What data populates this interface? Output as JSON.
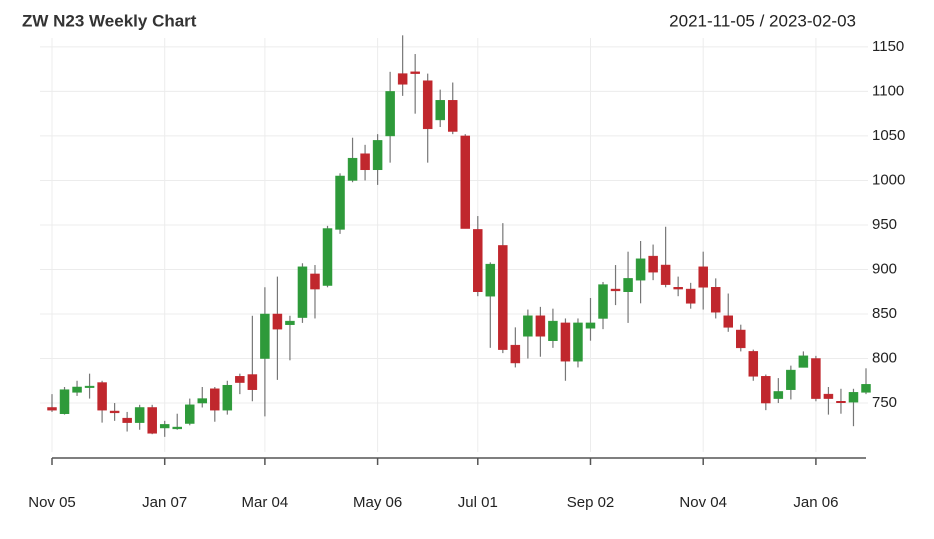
{
  "chart_data": {
    "type": "candlestick",
    "title": "ZW N23 Weekly Chart",
    "subtitle": "2021-11-05 / 2023-02-03",
    "categories": [
      "Nov 05",
      null,
      null,
      null,
      null,
      null,
      null,
      null,
      null,
      "Jan 07",
      null,
      null,
      null,
      null,
      null,
      null,
      null,
      "Mar 04",
      null,
      null,
      null,
      null,
      null,
      null,
      null,
      null,
      "May 06",
      null,
      null,
      null,
      null,
      null,
      null,
      null,
      "Jul 01",
      null,
      null,
      null,
      null,
      null,
      null,
      null,
      null,
      "Sep 02",
      null,
      null,
      null,
      null,
      null,
      null,
      null,
      null,
      "Nov 04",
      null,
      null,
      null,
      null,
      null,
      null,
      null,
      null,
      "Jan 06",
      null,
      null,
      null,
      null
    ],
    "series": [
      {
        "open": [
          745,
          738,
          762,
          768,
          773,
          741,
          733,
          728,
          745,
          722,
          721,
          727,
          750,
          766,
          742,
          780,
          782,
          800,
          850,
          838,
          846,
          895,
          882,
          945,
          1000,
          1030,
          1012,
          1050,
          1120,
          1122,
          1112,
          1068,
          1090,
          1050,
          945,
          870,
          927,
          815,
          825,
          848,
          820,
          840,
          797,
          834,
          845,
          878,
          875,
          888,
          915,
          905,
          880,
          878,
          903,
          880,
          848,
          832,
          808,
          780,
          755,
          765,
          790,
          800,
          760,
          752,
          751,
          762
        ],
        "high": [
          760,
          768,
          775,
          783,
          775,
          750,
          740,
          748,
          748,
          730,
          738,
          755,
          768,
          768,
          775,
          783,
          848,
          880,
          892,
          848,
          907,
          905,
          949,
          1008,
          1048,
          1040,
          1052,
          1122,
          1163,
          1142,
          1120,
          1102,
          1110,
          1052,
          960,
          908,
          952,
          835,
          855,
          858,
          856,
          845,
          845,
          868,
          886,
          905,
          920,
          932,
          928,
          948,
          892,
          885,
          920,
          890,
          873,
          838,
          810,
          782,
          778,
          792,
          808,
          803,
          768,
          766,
          766,
          789
        ],
        "low": [
          740,
          737,
          758,
          755,
          728,
          730,
          718,
          720,
          715,
          712,
          720,
          725,
          745,
          729,
          737,
          760,
          752,
          735,
          776,
          798,
          840,
          845,
          880,
          940,
          998,
          1000,
          995,
          1020,
          1095,
          1075,
          1020,
          1060,
          1052,
          946,
          870,
          812,
          806,
          790,
          800,
          802,
          812,
          775,
          790,
          820,
          833,
          860,
          840,
          862,
          888,
          880,
          870,
          856,
          855,
          845,
          830,
          808,
          775,
          742,
          750,
          754,
          790,
          752,
          737,
          738,
          724,
          760
        ],
        "close": [
          742,
          765,
          768,
          769,
          742,
          739,
          728,
          745,
          716,
          726,
          723,
          748,
          755,
          742,
          770,
          773,
          765,
          850,
          833,
          842,
          903,
          878,
          946,
          1005,
          1025,
          1012,
          1045,
          1100,
          1108,
          1120,
          1058,
          1090,
          1055,
          946,
          875,
          906,
          810,
          795,
          848,
          825,
          842,
          797,
          840,
          840,
          883,
          876,
          890,
          912,
          897,
          883,
          878,
          862,
          880,
          852,
          835,
          812,
          780,
          750,
          763,
          787,
          803,
          755,
          755,
          751,
          762,
          771
        ]
      }
    ],
    "up_color": "#2e9a3a",
    "down_color": "#c0272d",
    "ylim": [
      695,
      1160
    ],
    "yticks": [
      750,
      800,
      850,
      900,
      950,
      1000,
      1050,
      1100,
      1150
    ],
    "grid": true
  }
}
